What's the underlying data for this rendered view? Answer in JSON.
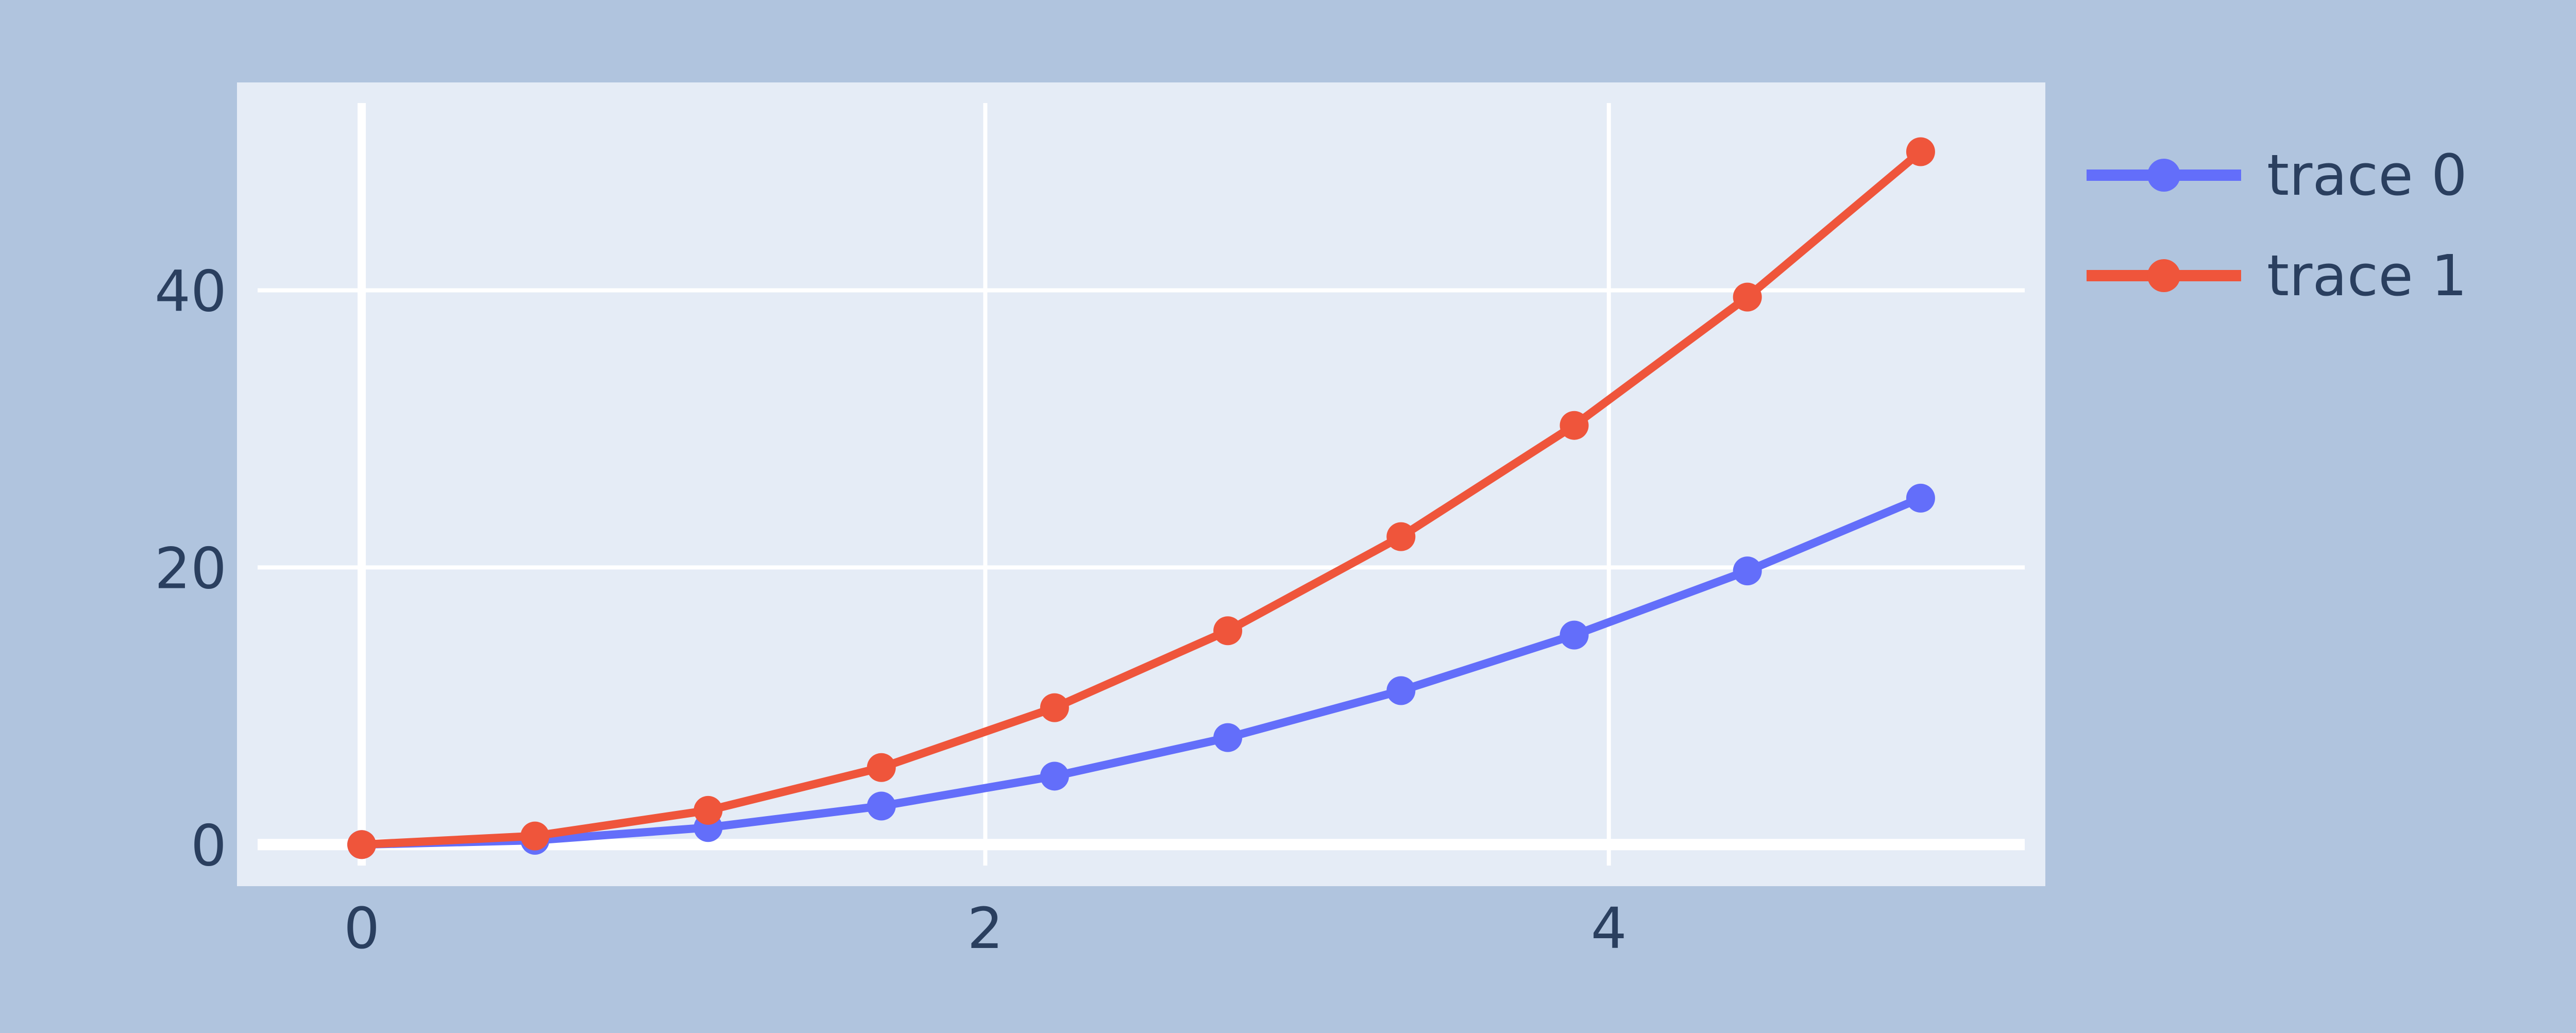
{
  "chart_data": {
    "type": "line",
    "title": "",
    "xlabel": "",
    "ylabel": "",
    "xlim": [
      -0.4,
      5.4
    ],
    "ylim": [
      -3,
      55
    ],
    "x_ticks": [
      0,
      2,
      4
    ],
    "x_tick_labels": [
      "0",
      "2",
      "4"
    ],
    "y_ticks": [
      0,
      20,
      40
    ],
    "y_tick_labels": [
      "0",
      "20",
      "40"
    ],
    "grid": true,
    "legend_position": "top-right",
    "x": [
      0,
      0.5556,
      1.1111,
      1.6667,
      2.2222,
      2.7778,
      3.3333,
      3.8889,
      4.4444,
      5.0
    ],
    "series": [
      {
        "name": "trace 0",
        "color": "#636efa",
        "values": [
          0,
          0.31,
          1.23,
          2.78,
          4.94,
          7.72,
          11.11,
          15.12,
          19.75,
          25.0
        ]
      },
      {
        "name": "trace 1",
        "color": "#ef553b",
        "values": [
          0,
          0.62,
          2.47,
          5.56,
          9.88,
          15.43,
          22.22,
          30.25,
          39.51,
          50.0
        ]
      }
    ],
    "colors": {
      "page_background": "#b0c4de",
      "plot_background": "#e5ecf6",
      "grid": "#ffffff",
      "text": "#2a3f5f"
    }
  }
}
